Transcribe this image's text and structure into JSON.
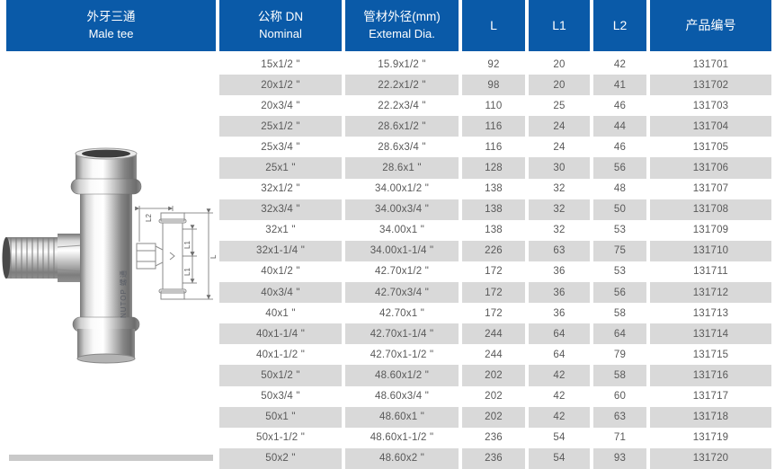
{
  "header": {
    "product": {
      "zh": "外牙三通",
      "en": "Male tee"
    },
    "columns": [
      {
        "line1": "公称 DN",
        "line2": "Nominal"
      },
      {
        "line1": "管材外径(mm)",
        "line2": "Extemal Dia."
      },
      {
        "line1": "L"
      },
      {
        "line1": "L1"
      },
      {
        "line1": "L2"
      },
      {
        "line1": "产品编号"
      }
    ]
  },
  "photo": {
    "brand": "NUTOP 螺通"
  },
  "diagram": {
    "labels": [
      "L2",
      "L1",
      "L1",
      "L"
    ]
  },
  "table": {
    "column_keys": [
      "nominal_dn",
      "external_dia_mm",
      "L",
      "L1",
      "L2",
      "product_code"
    ],
    "rows": [
      [
        "15x1/2 \"",
        "15.9x1/2 \"",
        "92",
        "20",
        "42",
        "131701"
      ],
      [
        "20x1/2 \"",
        "22.2x1/2 \"",
        "98",
        "20",
        "41",
        "131702"
      ],
      [
        "20x3/4 \"",
        "22.2x3/4 \"",
        "110",
        "25",
        "46",
        "131703"
      ],
      [
        "25x1/2 \"",
        "28.6x1/2 \"",
        "116",
        "24",
        "44",
        "131704"
      ],
      [
        "25x3/4 \"",
        "28.6x3/4 \"",
        "116",
        "24",
        "46",
        "131705"
      ],
      [
        "25x1 \"",
        "28.6x1 \"",
        "128",
        "30",
        "56",
        "131706"
      ],
      [
        "32x1/2 \"",
        "34.00x1/2 \"",
        "138",
        "32",
        "48",
        "131707"
      ],
      [
        "32x3/4 \"",
        "34.00x3/4 \"",
        "138",
        "32",
        "50",
        "131708"
      ],
      [
        "32x1 \"",
        "34.00x1 \"",
        "138",
        "32",
        "53",
        "131709"
      ],
      [
        "32x1-1/4 \"",
        "34.00x1-1/4 \"",
        "226",
        "63",
        "75",
        "131710"
      ],
      [
        "40x1/2 \"",
        "42.70x1/2 \"",
        "172",
        "36",
        "53",
        "131711"
      ],
      [
        "40x3/4 \"",
        "42.70x3/4 \"",
        "172",
        "36",
        "56",
        "131712"
      ],
      [
        "40x1 \"",
        "42.70x1 \"",
        "172",
        "36",
        "58",
        "131713"
      ],
      [
        "40x1-1/4 \"",
        "42.70x1-1/4 \"",
        "244",
        "64",
        "64",
        "131714"
      ],
      [
        "40x1-1/2 \"",
        "42.70x1-1/2 \"",
        "244",
        "64",
        "79",
        "131715"
      ],
      [
        "50x1/2 \"",
        "48.60x1/2 \"",
        "202",
        "42",
        "58",
        "131716"
      ],
      [
        "50x3/4 \"",
        "48.60x3/4 \"",
        "202",
        "42",
        "60",
        "131717"
      ],
      [
        "50x1 \"",
        "48.60x1 \"",
        "202",
        "42",
        "63",
        "131718"
      ],
      [
        "50x1-1/2 \"",
        "48.60x1-1/2 \"",
        "236",
        "54",
        "71",
        "131719"
      ],
      [
        "50x2 \"",
        "48.60x2 \"",
        "236",
        "54",
        "93",
        "131720"
      ]
    ]
  },
  "colors": {
    "header_bg": "#0a5aa8",
    "header_text": "#ffffff",
    "stripe": "#d9d9d9",
    "cell_text": "#595959",
    "diagram_line": "#7a7a7a",
    "bottom_bar": "#c9c9c9"
  }
}
